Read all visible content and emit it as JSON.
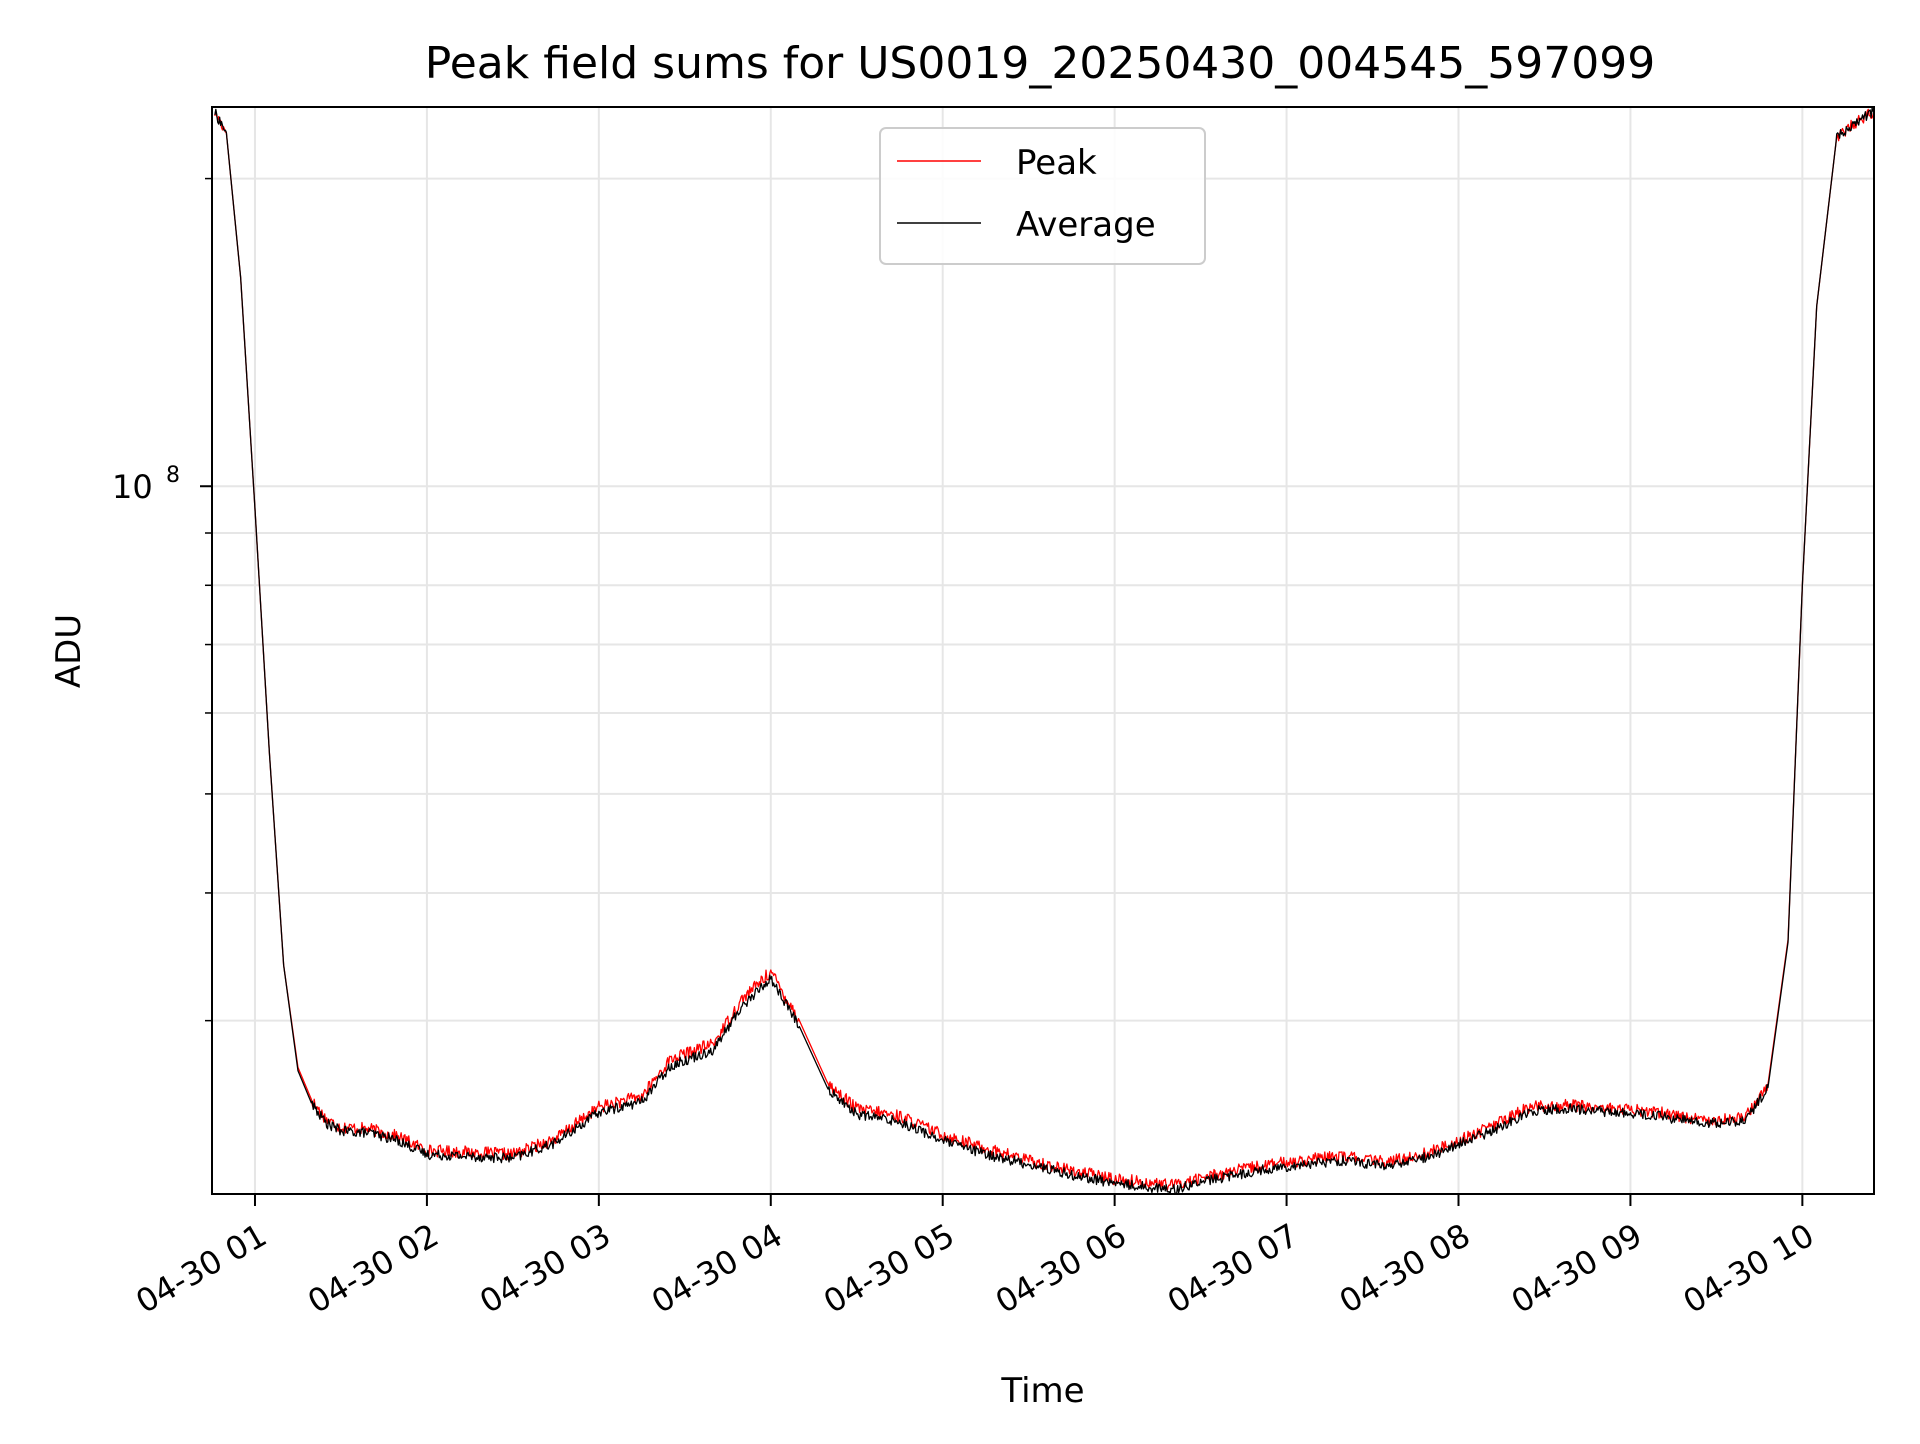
{
  "chart_data": {
    "type": "line",
    "title": "Peak field sums for US0019_20250430_004545_597099",
    "xlabel": "Time",
    "ylabel": "ADU",
    "x_axis_type": "time",
    "x_tick_labels": [
      "04-30 01",
      "04-30 02",
      "04-30 03",
      "04-30 04",
      "04-30 05",
      "04-30 06",
      "04-30 07",
      "04-30 08",
      "04-30 09",
      "04-30 10"
    ],
    "y_axis_scale": "log",
    "y_major_tick": {
      "base": "10",
      "exponent": "8",
      "value": 100000000
    },
    "y_minor_ticks": [
      30000000,
      40000000,
      50000000,
      60000000,
      70000000,
      80000000,
      90000000,
      200000000
    ],
    "xlim": [
      "2025-04-30 00:45",
      "2025-04-30 10:25"
    ],
    "ylim": [
      20300000,
      235000000
    ],
    "grid": true,
    "legend_location": "upper center",
    "series": [
      {
        "name": "Peak",
        "color": "#ff0000",
        "points": [
          [
            "2025-04-30 00:46",
            232000000
          ],
          [
            "2025-04-30 00:50",
            222000000
          ],
          [
            "2025-04-30 00:55",
            160000000
          ],
          [
            "2025-04-30 01:00",
            95000000
          ],
          [
            "2025-04-30 01:05",
            55000000
          ],
          [
            "2025-04-30 01:10",
            34000000
          ],
          [
            "2025-04-30 01:15",
            27000000
          ],
          [
            "2025-04-30 01:20",
            25000000
          ],
          [
            "2025-04-30 01:25",
            24000000
          ],
          [
            "2025-04-30 01:30",
            23600000
          ],
          [
            "2025-04-30 01:40",
            23500000
          ],
          [
            "2025-04-30 01:50",
            23100000
          ],
          [
            "2025-04-30 02:00",
            22400000
          ],
          [
            "2025-04-30 02:15",
            22300000
          ],
          [
            "2025-04-30 02:30",
            22200000
          ],
          [
            "2025-04-30 02:45",
            23000000
          ],
          [
            "2025-04-30 03:00",
            24700000
          ],
          [
            "2025-04-30 03:15",
            25300000
          ],
          [
            "2025-04-30 03:25",
            27500000
          ],
          [
            "2025-04-30 03:40",
            28500000
          ],
          [
            "2025-04-30 03:50",
            31500000
          ],
          [
            "2025-04-30 04:00",
            33500000
          ],
          [
            "2025-04-30 04:10",
            30000000
          ],
          [
            "2025-04-30 04:20",
            26000000
          ],
          [
            "2025-04-30 04:30",
            24600000
          ],
          [
            "2025-04-30 04:45",
            24200000
          ],
          [
            "2025-04-30 05:00",
            23200000
          ],
          [
            "2025-04-30 05:15",
            22500000
          ],
          [
            "2025-04-30 05:30",
            21900000
          ],
          [
            "2025-04-30 05:45",
            21400000
          ],
          [
            "2025-04-30 06:00",
            21000000
          ],
          [
            "2025-04-30 06:20",
            20700000
          ],
          [
            "2025-04-30 06:35",
            21200000
          ],
          [
            "2025-04-30 06:50",
            21600000
          ],
          [
            "2025-04-30 07:05",
            21900000
          ],
          [
            "2025-04-30 07:20",
            22100000
          ],
          [
            "2025-04-30 07:35",
            21800000
          ],
          [
            "2025-04-30 07:50",
            22300000
          ],
          [
            "2025-04-30 08:05",
            23200000
          ],
          [
            "2025-04-30 08:15",
            23900000
          ],
          [
            "2025-04-30 08:25",
            24700000
          ],
          [
            "2025-04-30 08:40",
            24800000
          ],
          [
            "2025-04-30 08:55",
            24600000
          ],
          [
            "2025-04-30 09:10",
            24400000
          ],
          [
            "2025-04-30 09:25",
            24000000
          ],
          [
            "2025-04-30 09:40",
            24100000
          ],
          [
            "2025-04-30 09:48",
            26000000
          ],
          [
            "2025-04-30 09:55",
            36000000
          ],
          [
            "2025-04-30 10:00",
            80000000
          ],
          [
            "2025-04-30 10:05",
            150000000
          ],
          [
            "2025-04-30 10:12",
            220000000
          ],
          [
            "2025-04-30 10:25",
            233000000
          ]
        ]
      },
      {
        "name": "Average",
        "color": "#000000",
        "points": [
          [
            "2025-04-30 00:46",
            232000000
          ],
          [
            "2025-04-30 00:50",
            222000000
          ],
          [
            "2025-04-30 00:55",
            160000000
          ],
          [
            "2025-04-30 01:00",
            95000000
          ],
          [
            "2025-04-30 01:05",
            55000000
          ],
          [
            "2025-04-30 01:10",
            34000000
          ],
          [
            "2025-04-30 01:15",
            26800000
          ],
          [
            "2025-04-30 01:20",
            24800000
          ],
          [
            "2025-04-30 01:25",
            23800000
          ],
          [
            "2025-04-30 01:30",
            23400000
          ],
          [
            "2025-04-30 01:40",
            23300000
          ],
          [
            "2025-04-30 01:50",
            22900000
          ],
          [
            "2025-04-30 02:00",
            22200000
          ],
          [
            "2025-04-30 02:15",
            22100000
          ],
          [
            "2025-04-30 02:30",
            22000000
          ],
          [
            "2025-04-30 02:45",
            22800000
          ],
          [
            "2025-04-30 03:00",
            24400000
          ],
          [
            "2025-04-30 03:15",
            25000000
          ],
          [
            "2025-04-30 03:25",
            27100000
          ],
          [
            "2025-04-30 03:40",
            28100000
          ],
          [
            "2025-04-30 03:50",
            31000000
          ],
          [
            "2025-04-30 04:00",
            33000000
          ],
          [
            "2025-04-30 04:10",
            29600000
          ],
          [
            "2025-04-30 04:20",
            25700000
          ],
          [
            "2025-04-30 04:30",
            24300000
          ],
          [
            "2025-04-30 04:45",
            23900000
          ],
          [
            "2025-04-30 05:00",
            22900000
          ],
          [
            "2025-04-30 05:15",
            22200000
          ],
          [
            "2025-04-30 05:30",
            21700000
          ],
          [
            "2025-04-30 05:45",
            21200000
          ],
          [
            "2025-04-30 06:00",
            20800000
          ],
          [
            "2025-04-30 06:20",
            20500000
          ],
          [
            "2025-04-30 06:35",
            21000000
          ],
          [
            "2025-04-30 06:50",
            21400000
          ],
          [
            "2025-04-30 07:05",
            21700000
          ],
          [
            "2025-04-30 07:20",
            21900000
          ],
          [
            "2025-04-30 07:35",
            21600000
          ],
          [
            "2025-04-30 07:50",
            22100000
          ],
          [
            "2025-04-30 08:05",
            23000000
          ],
          [
            "2025-04-30 08:15",
            23600000
          ],
          [
            "2025-04-30 08:25",
            24500000
          ],
          [
            "2025-04-30 08:40",
            24600000
          ],
          [
            "2025-04-30 08:55",
            24400000
          ],
          [
            "2025-04-30 09:10",
            24200000
          ],
          [
            "2025-04-30 09:25",
            23800000
          ],
          [
            "2025-04-30 09:40",
            23900000
          ],
          [
            "2025-04-30 09:48",
            25800000
          ],
          [
            "2025-04-30 09:55",
            35800000
          ],
          [
            "2025-04-30 10:00",
            80000000
          ],
          [
            "2025-04-30 10:05",
            150000000
          ],
          [
            "2025-04-30 10:12",
            220000000
          ],
          [
            "2025-04-30 10:25",
            233000000
          ]
        ]
      }
    ]
  }
}
